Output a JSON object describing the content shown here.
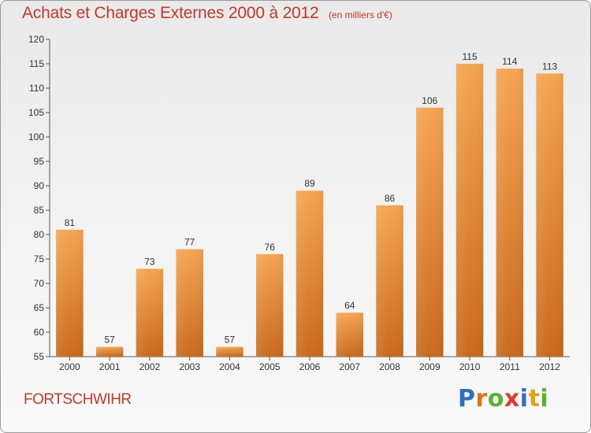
{
  "chart_data": {
    "type": "bar",
    "title": "Achats et Charges Externes 2000 à 2012",
    "subtitle": "(en milliers d'€)",
    "categories": [
      "2000",
      "2001",
      "2002",
      "2003",
      "2004",
      "2005",
      "2006",
      "2007",
      "2008",
      "2009",
      "2010",
      "2011",
      "2012"
    ],
    "values": [
      81,
      57,
      73,
      77,
      57,
      76,
      89,
      64,
      86,
      106,
      115,
      114,
      113
    ],
    "ylim": [
      55,
      120
    ],
    "yticks": [
      55,
      60,
      65,
      70,
      75,
      80,
      85,
      90,
      95,
      100,
      105,
      110,
      115,
      120
    ],
    "grid": false,
    "bar_color_top": "#f5a550",
    "bar_color_bottom": "#c96a1c"
  },
  "footer": {
    "commune": "FORTSCHWIHR",
    "logo_letters": [
      {
        "ch": "P",
        "color": "#2e6fc4"
      },
      {
        "ch": "r",
        "color": "#e0701a"
      },
      {
        "ch": "o",
        "color": "#5bb030"
      },
      {
        "ch": "x",
        "color": "#e23a2e"
      },
      {
        "ch": "i",
        "color": "#2e6fc4"
      },
      {
        "ch": "t",
        "color": "#e0a21a"
      },
      {
        "ch": "i",
        "color": "#5bb030"
      }
    ]
  }
}
